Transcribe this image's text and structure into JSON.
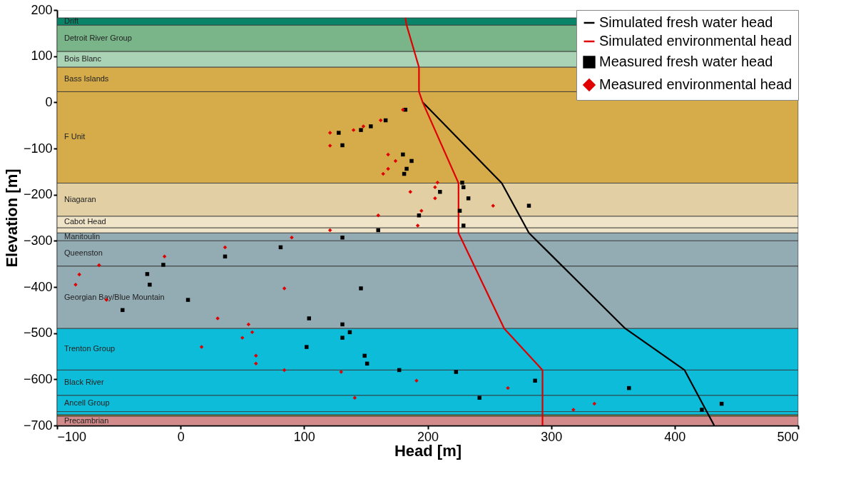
{
  "chart_data": {
    "type": "line",
    "xlabel": "Head [m]",
    "ylabel": "Elevation [m]",
    "xlim": [
      -100,
      500
    ],
    "xticks": [
      -100,
      0,
      100,
      200,
      300,
      400,
      500
    ],
    "ylim": [
      -700,
      200
    ],
    "yticks": [
      -700,
      -600,
      -500,
      -400,
      -300,
      -200,
      -100,
      0,
      100,
      200
    ],
    "legend": "top right",
    "bands": [
      {
        "axis": "y",
        "from": 167,
        "to": 183,
        "label": "Drift",
        "color": "#0a8468"
      },
      {
        "axis": "y",
        "from": 110,
        "to": 167,
        "label": "Detroit River Group",
        "color": "#7ab58a"
      },
      {
        "axis": "y",
        "from": 76,
        "to": 110,
        "label": "Bois Blanc",
        "color": "#aad2b5"
      },
      {
        "axis": "y",
        "from": 23,
        "to": 76,
        "label": "Bass Islands",
        "color": "#d6ac4b"
      },
      {
        "axis": "y",
        "from": -175,
        "to": 23,
        "label": "F Unit",
        "color": "#d6ac4b"
      },
      {
        "axis": "y",
        "from": -247,
        "to": -175,
        "label": "Niagaran",
        "color": "#e2cfa3"
      },
      {
        "axis": "y",
        "from": -272,
        "to": -247,
        "label": "Cabot Head",
        "color": "#f0e4c8"
      },
      {
        "axis": "y",
        "from": -283,
        "to": -272,
        "color": "#f0e4c8"
      },
      {
        "axis": "y",
        "from": -300,
        "to": -283,
        "label": "Manitoulin",
        "color": "#93abb3"
      },
      {
        "axis": "y",
        "from": -355,
        "to": -300,
        "label": "Queenston",
        "color": "#93abb3"
      },
      {
        "axis": "y",
        "from": -490,
        "to": -355,
        "label": "Georgian Bay/Blue Mountain",
        "color": "#93abb3"
      },
      {
        "axis": "y",
        "from": -580,
        "to": -490,
        "label": "Trenton Group",
        "color": "#0dbcd9"
      },
      {
        "axis": "y",
        "from": -635,
        "to": -580,
        "label": "Black River",
        "color": "#0dbcd9"
      },
      {
        "axis": "y",
        "from": -670,
        "to": -635,
        "label": "Ancell Group",
        "color": "#0dbcd9"
      },
      {
        "axis": "y",
        "from": -677,
        "to": -670,
        "color": "#0dbcd9"
      },
      {
        "axis": "y",
        "from": -680,
        "to": -677,
        "color": "#9a9a40"
      },
      {
        "axis": "y",
        "from": -700,
        "to": -680,
        "label": "Precambrian",
        "color": "#d28a8a"
      }
    ],
    "series": [
      {
        "name": "Simulated fresh water head",
        "type": "line",
        "marker": "none",
        "color": "#000000",
        "x": [
          196,
          260,
          282,
          360,
          408,
          432
        ],
        "values": [
          0,
          -175,
          -283,
          -490,
          -580,
          -700
        ]
      },
      {
        "name": "Simulated environmental head",
        "type": "line",
        "marker": "none",
        "color": "#e00000",
        "x": [
          182,
          183,
          193,
          193,
          196,
          225,
          225,
          262,
          293,
          293
        ],
        "values": [
          183,
          167,
          76,
          23,
          0,
          -175,
          -283,
          -490,
          -580,
          -700
        ]
      },
      {
        "name": "Measured fresh water head",
        "type": "scatter",
        "marker": "square",
        "color": "#000000",
        "x": [
          182,
          166,
          154,
          146,
          128,
          131,
          180,
          187,
          183,
          181,
          228,
          229,
          210,
          233,
          282,
          226,
          193,
          229,
          160,
          131,
          81,
          36,
          -14,
          -27,
          -25,
          6,
          -47,
          146,
          104,
          131,
          137,
          131,
          102,
          149,
          151,
          177,
          223,
          287,
          242,
          363,
          422,
          438
        ],
        "values": [
          -16,
          -39,
          -52,
          -60,
          -66,
          -93,
          -113,
          -127,
          -144,
          -155,
          -174,
          -184,
          -194,
          -208,
          -224,
          -235,
          -245,
          -267,
          -277,
          -293,
          -314,
          -334,
          -352,
          -372,
          -395,
          -428,
          -450,
          -403,
          -468,
          -481,
          -498,
          -510,
          -530,
          -549,
          -566,
          -580,
          -584,
          -603,
          -640,
          -619,
          -666,
          -653
        ]
      },
      {
        "name": "Measured environmental head",
        "type": "scatter",
        "marker": "diamond",
        "color": "#e00000",
        "x": [
          180,
          162,
          148,
          140,
          121,
          121,
          168,
          174,
          168,
          164,
          208,
          206,
          186,
          206,
          195,
          160,
          192,
          121,
          253,
          90,
          36,
          -13,
          -66,
          -82,
          -85,
          -60,
          84,
          30,
          55,
          58,
          50,
          17,
          61,
          61,
          84,
          130,
          191,
          141,
          265,
          318,
          335
        ],
        "values": [
          -16,
          -39,
          -52,
          -60,
          -66,
          -94,
          -113,
          -127,
          -144,
          -155,
          -174,
          -184,
          -194,
          -208,
          -235,
          -245,
          -267,
          -277,
          -224,
          -293,
          -314,
          -334,
          -353,
          -373,
          -395,
          -428,
          -403,
          -468,
          -481,
          -498,
          -510,
          -530,
          -549,
          -566,
          -580,
          -584,
          -603,
          -640,
          -619,
          -666,
          -653
        ]
      }
    ]
  }
}
